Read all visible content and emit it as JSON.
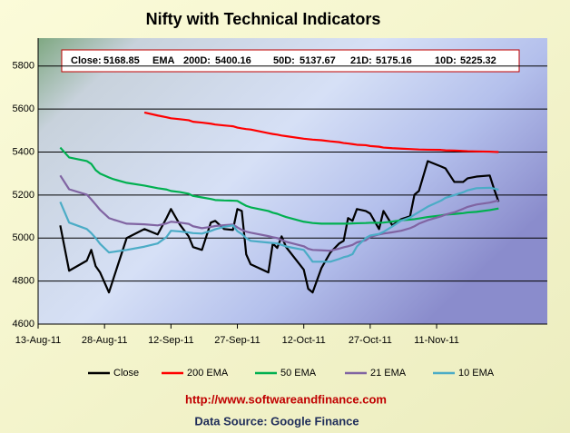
{
  "chart_data": {
    "type": "line",
    "title": "Nifty with Technical Indicators",
    "summary": [
      "Close:",
      "EMA",
      "200D:",
      "50D:",
      "21D:",
      "10D:"
    ],
    "footer": {
      "url": "http://www.softwareandfinance.com",
      "source": "Data Source: Google Finance"
    },
    "legend": "bottom",
    "grid": true,
    "x": [
      "2011-08-18",
      "2011-08-20",
      "2011-08-24",
      "2011-08-25",
      "2011-08-26",
      "2011-08-27",
      "2011-08-29",
      "2011-08-30",
      "2011-09-02",
      "2011-09-06",
      "2011-09-09",
      "2011-09-11",
      "2011-09-12",
      "2011-09-14",
      "2011-09-16",
      "2011-09-17",
      "2011-09-19",
      "2011-09-21",
      "2011-09-22",
      "2011-09-24",
      "2011-09-26",
      "2011-09-27",
      "2011-09-28",
      "2011-09-29",
      "2011-09-30",
      "2011-10-04",
      "2011-10-05",
      "2011-10-06",
      "2011-10-07",
      "2011-10-08",
      "2011-10-12",
      "2011-10-13",
      "2011-10-14",
      "2011-10-16",
      "2011-10-18",
      "2011-10-20",
      "2011-10-21",
      "2011-10-22",
      "2011-10-23",
      "2011-10-24",
      "2011-10-26",
      "2011-10-27",
      "2011-10-29",
      "2011-10-30",
      "2011-11-01",
      "2011-11-03",
      "2011-11-05",
      "2011-11-06",
      "2011-11-07",
      "2011-11-09",
      "2011-11-12",
      "2011-11-13",
      "2011-11-15",
      "2011-11-17",
      "2011-11-18",
      "2011-11-20",
      "2011-11-23",
      "2011-11-24",
      "2011-11-25"
    ],
    "xlim": [
      "2011-08-13",
      "2011-12-06"
    ],
    "xticks": [
      {
        "value": "2011-08-13",
        "label": "13-Aug-11"
      },
      {
        "value": "2011-08-28",
        "label": "28-Aug-11"
      },
      {
        "value": "2011-09-12",
        "label": "12-Sep-11"
      },
      {
        "value": "2011-09-27",
        "label": "27-Sep-11"
      },
      {
        "value": "2011-10-12",
        "label": "12-Oct-11"
      },
      {
        "value": "2011-10-27",
        "label": "27-Oct-11"
      },
      {
        "value": "2011-11-11",
        "label": "11-Nov-11"
      }
    ],
    "ylim": [
      4600,
      5930
    ],
    "yticks": [
      4600,
      4800,
      5000,
      5200,
      5400,
      5600,
      5800
    ],
    "series": [
      {
        "name": "Close",
        "color": "#000000",
        "values": [
          5059,
          4848,
          4895,
          4945,
          4869,
          4840,
          4747,
          4811,
          5000,
          5042,
          5017,
          5093,
          5135,
          5063,
          5008,
          4958,
          4945,
          5072,
          5080,
          5042,
          5038,
          5135,
          5126,
          4924,
          4878,
          4840,
          4975,
          4954,
          5008,
          4958,
          4853,
          4764,
          4747,
          4861,
          4933,
          4975,
          4987,
          5093,
          5080,
          5135,
          5126,
          5114,
          5042,
          5126,
          5059,
          5088,
          5101,
          5202,
          5219,
          5358,
          5333,
          5324,
          5261,
          5261,
          5278,
          5286,
          5291,
          5227,
          5168.85
        ]
      },
      {
        "name": "200 EMA",
        "color": "#ff0000",
        "values": [
          null,
          null,
          null,
          null,
          null,
          null,
          null,
          null,
          null,
          5584,
          5570,
          5562,
          5557,
          5553,
          5548,
          5541,
          5537,
          5532,
          5528,
          5524,
          5520,
          5514,
          5510,
          5507,
          5505,
          5488,
          5484,
          5481,
          5477,
          5474,
          5462,
          5460,
          5458,
          5455,
          5450,
          5446,
          5442,
          5440,
          5437,
          5434,
          5432,
          5428,
          5425,
          5421,
          5418,
          5416,
          5414,
          5413,
          5412,
          5411,
          5410,
          5408,
          5407,
          5405,
          5404,
          5403,
          5402,
          5401,
          5400.16
        ]
      },
      {
        "name": "50 EMA",
        "color": "#00b050",
        "values": [
          5421,
          5375,
          5358,
          5345,
          5316,
          5300,
          5282,
          5274,
          5257,
          5244,
          5232,
          5226,
          5219,
          5214,
          5206,
          5196,
          5189,
          5182,
          5177,
          5175,
          5174,
          5173,
          5161,
          5150,
          5143,
          5126,
          5118,
          5113,
          5105,
          5098,
          5076,
          5073,
          5070,
          5067,
          5067,
          5067,
          5067,
          5067,
          5068,
          5069,
          5070,
          5071,
          5071,
          5072,
          5077,
          5083,
          5086,
          5088,
          5091,
          5098,
          5105,
          5109,
          5112,
          5116,
          5119,
          5122,
          5130,
          5134,
          5137.67
        ]
      },
      {
        "name": "21 EMA",
        "color": "#8064a2",
        "values": [
          5291,
          5227,
          5202,
          5180,
          5156,
          5131,
          5093,
          5086,
          5067,
          5064,
          5059,
          5068,
          5076,
          5072,
          5066,
          5055,
          5046,
          5052,
          5056,
          5060,
          5063,
          5050,
          5038,
          5030,
          5025,
          5009,
          5004,
          5000,
          4991,
          4983,
          4962,
          4950,
          4945,
          4943,
          4941,
          4951,
          4957,
          4962,
          4968,
          4980,
          4990,
          5005,
          5017,
          5021,
          5027,
          5034,
          5046,
          5055,
          5067,
          5083,
          5101,
          5109,
          5120,
          5136,
          5145,
          5156,
          5165,
          5170,
          5175.16
        ]
      },
      {
        "name": "10 EMA",
        "color": "#4bacc6",
        "values": [
          5168,
          5072,
          5042,
          5023,
          5000,
          4973,
          4933,
          4936,
          4945,
          4960,
          4975,
          5005,
          5034,
          5031,
          5026,
          5023,
          5021,
          5033,
          5041,
          5052,
          5059,
          5032,
          5019,
          5000,
          4987,
          4979,
          4977,
          4975,
          4968,
          4961,
          4945,
          4918,
          4890,
          4890,
          4890,
          4903,
          4911,
          4916,
          4925,
          4961,
          5000,
          5012,
          5019,
          5029,
          5054,
          5081,
          5096,
          5109,
          5121,
          5146,
          5174,
          5187,
          5200,
          5213,
          5222,
          5232,
          5234,
          5230,
          5225.32
        ]
      }
    ]
  }
}
